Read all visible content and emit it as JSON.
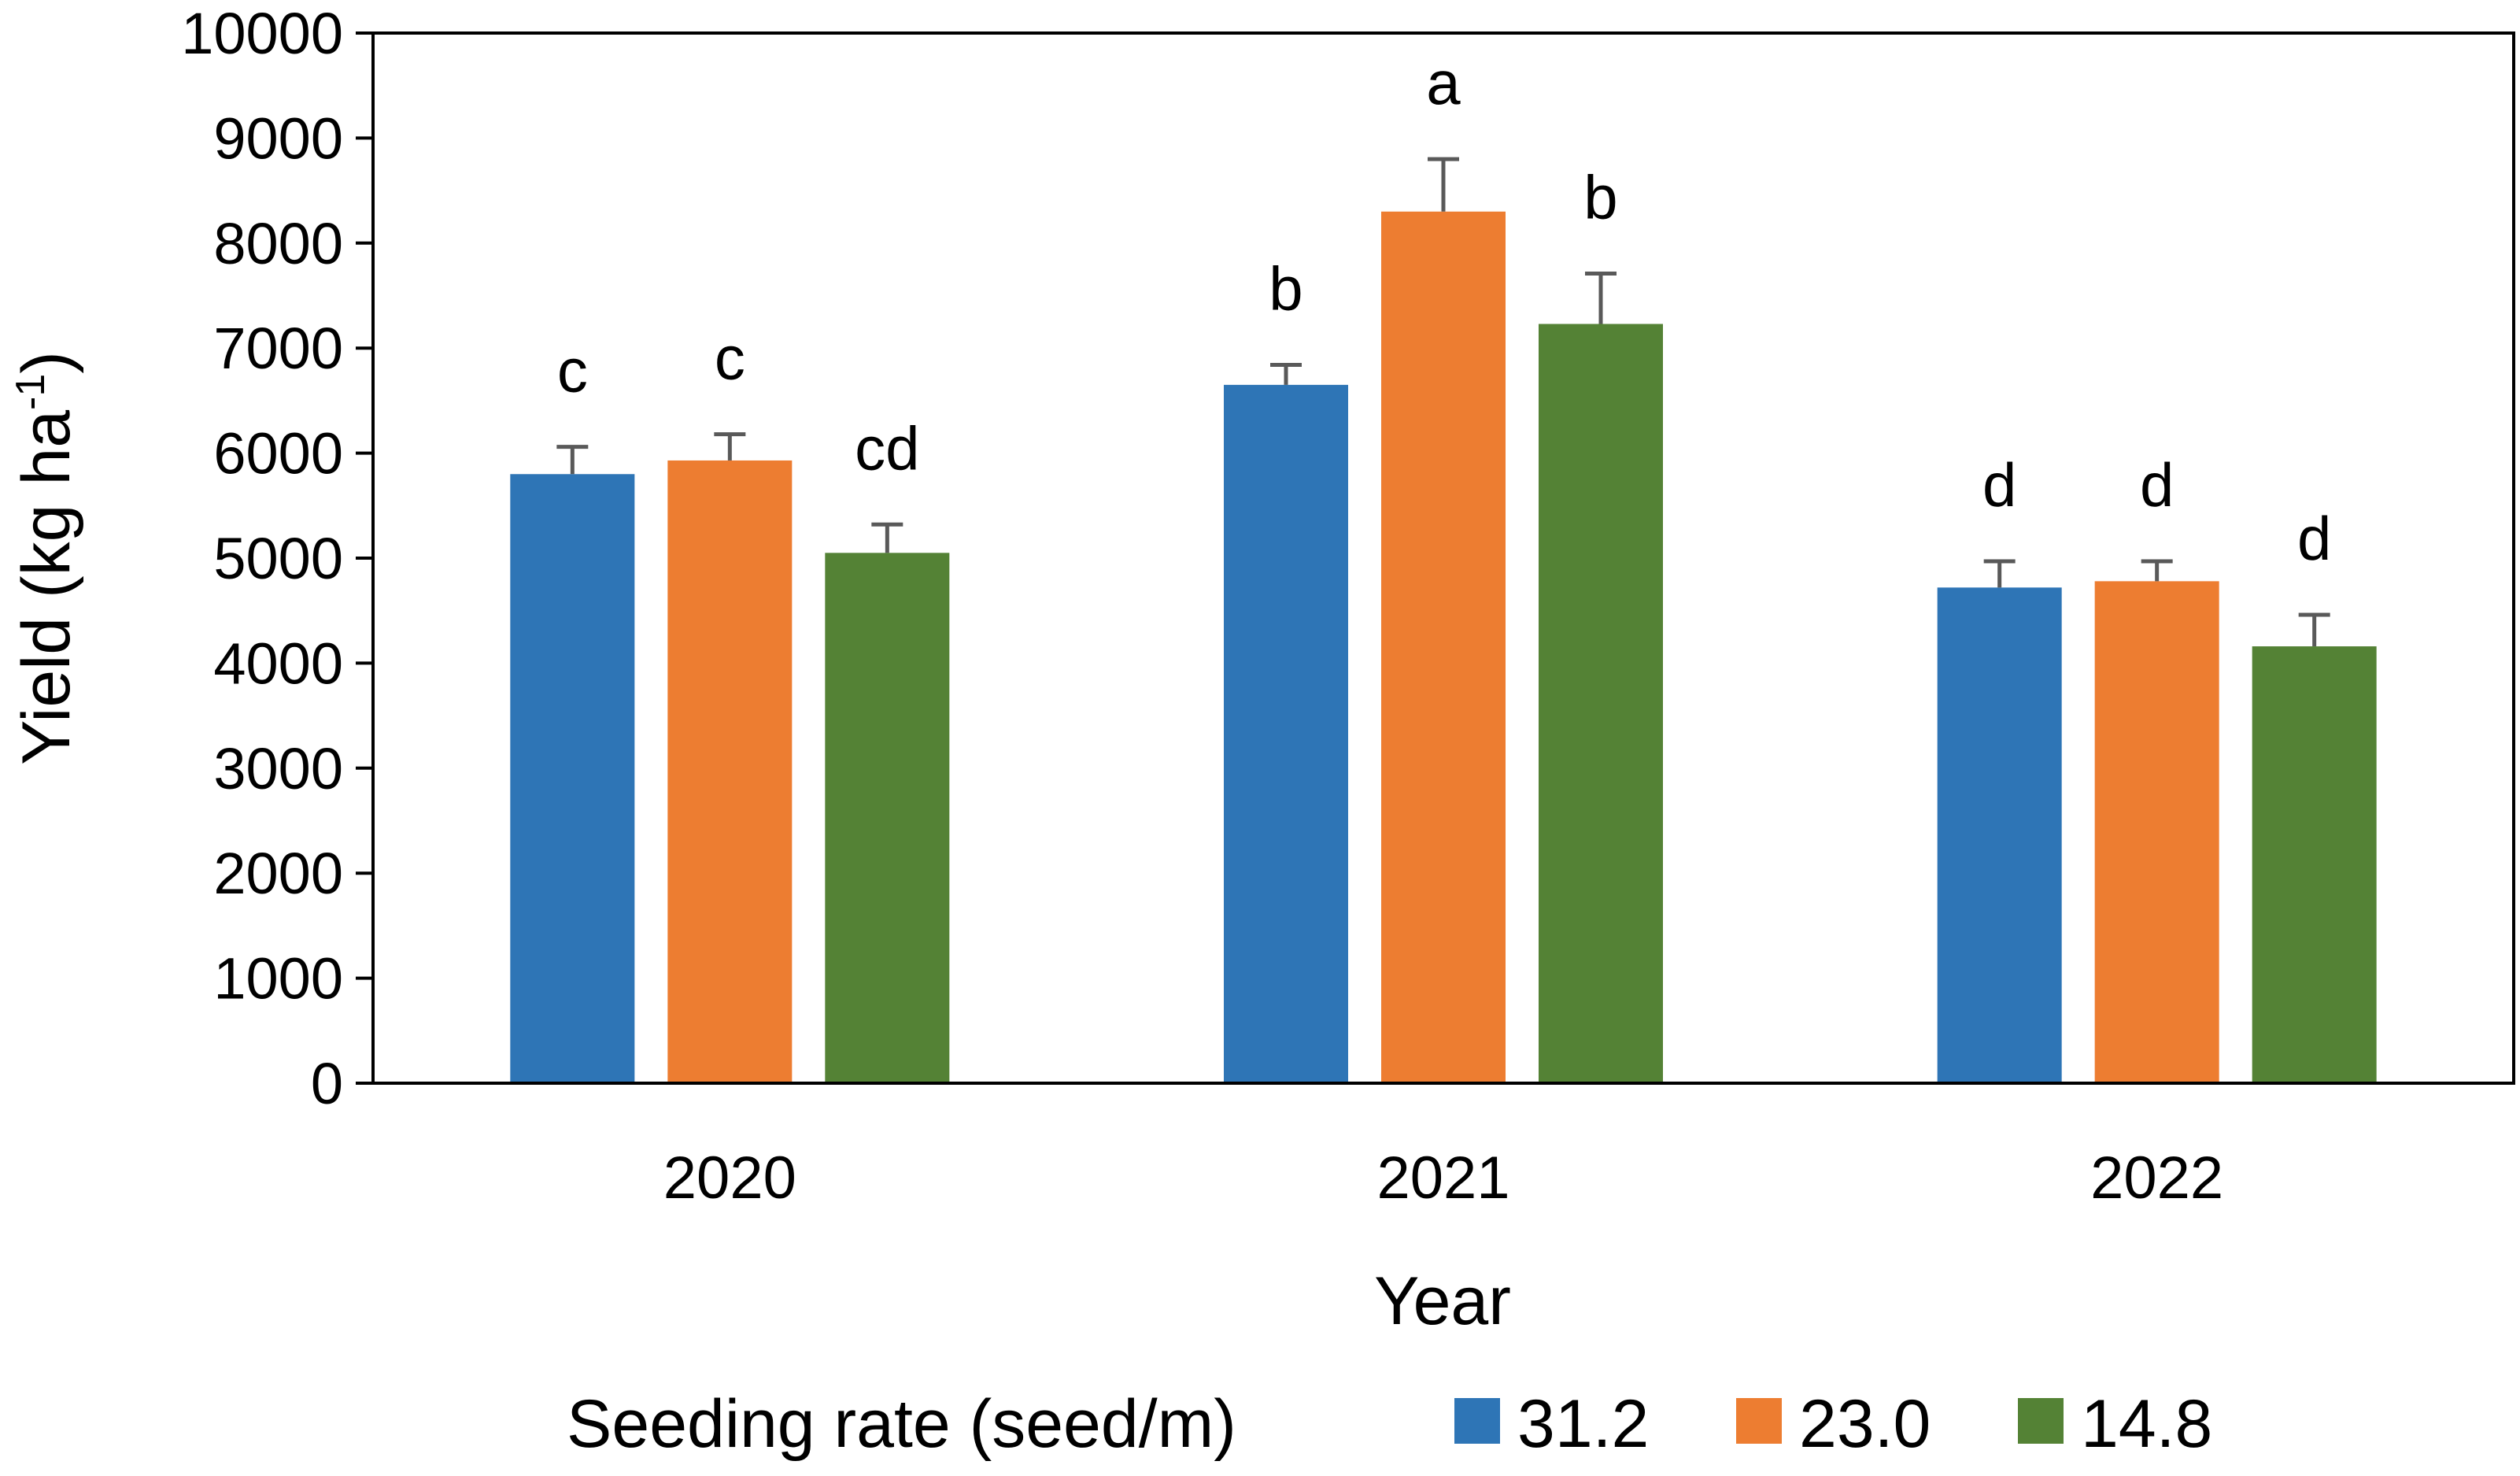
{
  "chart_data": {
    "type": "bar",
    "title": "",
    "xlabel": "Year",
    "ylabel_main": "Yield (kg ha",
    "ylabel_sup": "-1",
    "ylabel_close": ")",
    "ylim": [
      0,
      10000
    ],
    "yticks": [
      0,
      1000,
      2000,
      3000,
      4000,
      5000,
      6000,
      7000,
      8000,
      9000,
      10000
    ],
    "categories": [
      "2020",
      "2021",
      "2022"
    ],
    "legend_title": "Seeding rate (seed/m)",
    "legend_position": "bottom",
    "series": [
      {
        "name": "31.2",
        "color": "#2E75B6",
        "values": [
          5800,
          6650,
          4720
        ],
        "errors": [
          260,
          190,
          250
        ],
        "letters": [
          "c",
          "b",
          "d"
        ]
      },
      {
        "name": "23.0",
        "color": "#ED7D31",
        "values": [
          5930,
          8300,
          4780
        ],
        "errors": [
          250,
          500,
          190
        ],
        "letters": [
          "c",
          "a",
          "d"
        ]
      },
      {
        "name": "14.8",
        "color": "#548235",
        "values": [
          5050,
          7230,
          4160
        ],
        "errors": [
          270,
          480,
          300
        ],
        "letters": [
          "cd",
          "b",
          "d"
        ]
      }
    ],
    "error_bar_color": "#595959",
    "grid": false
  }
}
